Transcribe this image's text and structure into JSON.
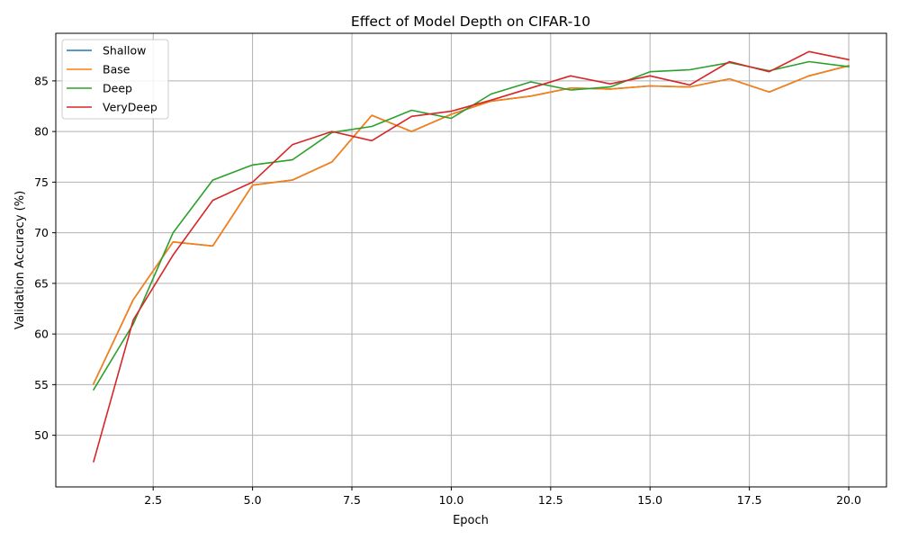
{
  "chart_data": {
    "type": "line",
    "title": "Effect of Model Depth on CIFAR-10",
    "xlabel": "Epoch",
    "ylabel": "Validation Accuracy (%)",
    "xlim": [
      0.05,
      20.95
    ],
    "ylim": [
      44.9,
      89.7
    ],
    "xticks": [
      2.5,
      5.0,
      7.5,
      10.0,
      12.5,
      15.0,
      17.5,
      20.0
    ],
    "xtick_labels": [
      "2.5",
      "5.0",
      "7.5",
      "10.0",
      "12.5",
      "15.0",
      "17.5",
      "20.0"
    ],
    "yticks": [
      50,
      55,
      60,
      65,
      70,
      75,
      80,
      85
    ],
    "ytick_labels": [
      "50",
      "55",
      "60",
      "65",
      "70",
      "75",
      "80",
      "85"
    ],
    "grid": true,
    "legend_position": "upper-left",
    "x": [
      1,
      2,
      3,
      4,
      5,
      6,
      7,
      8,
      9,
      10,
      11,
      12,
      13,
      14,
      15,
      16,
      17,
      18,
      19,
      20
    ],
    "series": [
      {
        "name": "Shallow",
        "color": "#1f77b4",
        "values": [
          55.1,
          63.4,
          69.1,
          68.7,
          74.7,
          75.2,
          77.0,
          81.6,
          80.0,
          81.7,
          83.0,
          83.5,
          84.3,
          84.2,
          84.5,
          84.4,
          85.2,
          83.9,
          85.5,
          86.5
        ]
      },
      {
        "name": "Base",
        "color": "#ff7f0e",
        "values": [
          55.1,
          63.4,
          69.1,
          68.7,
          74.7,
          75.2,
          77.0,
          81.6,
          80.0,
          81.7,
          83.0,
          83.5,
          84.3,
          84.2,
          84.5,
          84.4,
          85.2,
          83.9,
          85.5,
          86.5
        ]
      },
      {
        "name": "Deep",
        "color": "#2ca02c",
        "values": [
          54.5,
          61.0,
          70.0,
          75.2,
          76.7,
          77.2,
          79.9,
          80.5,
          82.1,
          81.3,
          83.7,
          84.9,
          84.1,
          84.4,
          85.9,
          86.1,
          86.8,
          86.0,
          86.9,
          86.4
        ]
      },
      {
        "name": "VeryDeep",
        "color": "#d62728",
        "values": [
          47.4,
          61.4,
          67.8,
          73.2,
          75.0,
          78.7,
          80.0,
          79.1,
          81.5,
          82.0,
          83.1,
          84.3,
          85.5,
          84.7,
          85.5,
          84.6,
          86.9,
          85.9,
          87.9,
          87.1
        ]
      }
    ]
  }
}
